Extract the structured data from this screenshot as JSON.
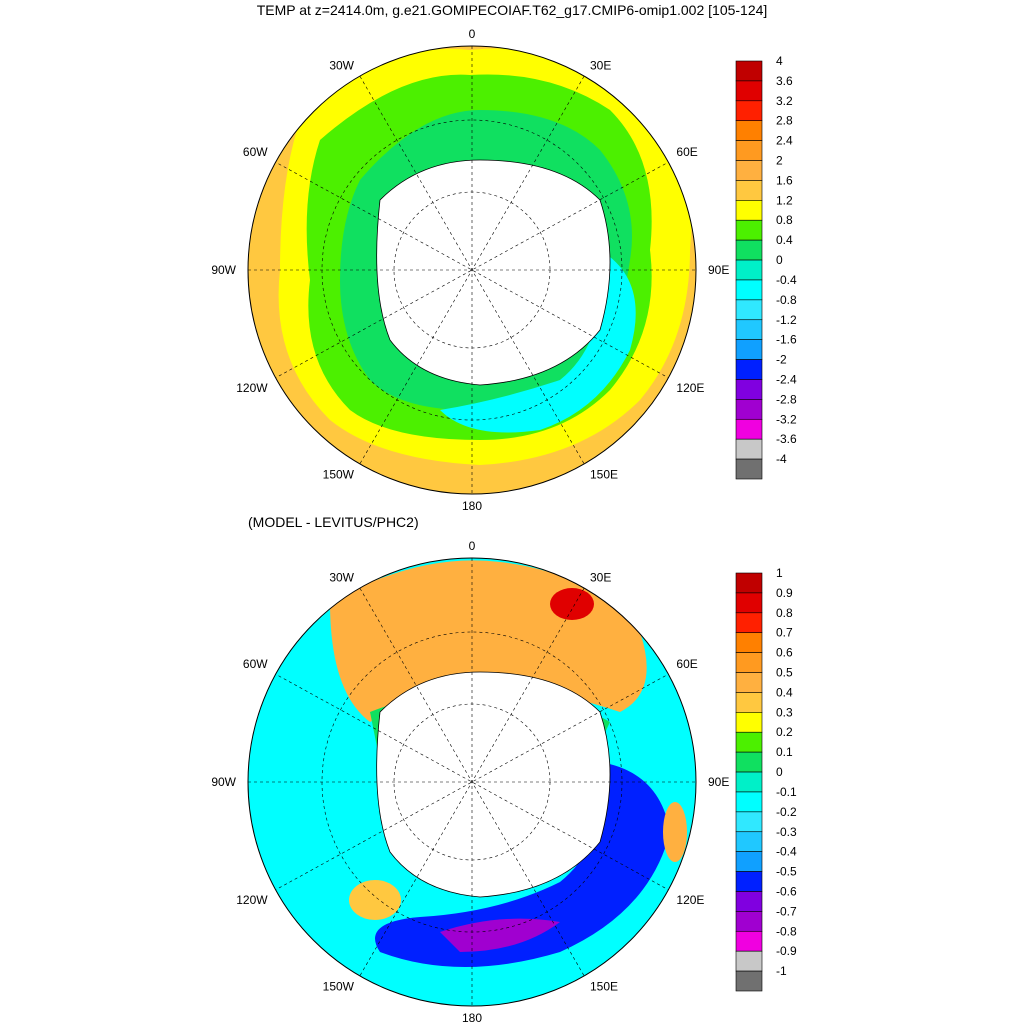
{
  "title": "TEMP at z=2414.0m, g.e21.GOMIPECOIAF.T62_g17.CMIP6-omip1.002 [105-124]",
  "subtitle": "(MODEL - LEVITUS/PHC2)",
  "chart_data": [
    {
      "type": "heatmap",
      "projection": "south-polar-stereographic",
      "title": "TEMP at z=2414.0m, g.e21.GOMIPECOIAF.T62_g17.CMIP6-omip1.002 [105-124]",
      "longitude_labels": [
        "0",
        "30E",
        "60E",
        "90E",
        "120E",
        "150E",
        "180",
        "150W",
        "120W",
        "90W",
        "60W",
        "30W"
      ],
      "colorbar": {
        "levels": [
          "4",
          "3.6",
          "3.2",
          "2.8",
          "2.4",
          "2",
          "1.6",
          "1.2",
          "0.8",
          "0.4",
          "0",
          "-0.4",
          "-0.8",
          "-1.2",
          "-1.6",
          "-2",
          "-2.4",
          "-2.8",
          "-3.2",
          "-3.6",
          "-4"
        ],
        "colors": [
          "#c00000",
          "#e00000",
          "#ff2000",
          "#ff8000",
          "#ff9a20",
          "#ffb040",
          "#ffc840",
          "#ffff00",
          "#4cf000",
          "#10e060",
          "#00f0c8",
          "#00ffff",
          "#30e8ff",
          "#20c8ff",
          "#10a0ff",
          "#0020ff",
          "#8000e0",
          "#a000d0",
          "#f000e0",
          "#c8c8c8",
          "#707070"
        ]
      },
      "range": [
        -4,
        4
      ],
      "regions_summary": [
        "outer ring 1.2 to 2.0 (orange/yellow)",
        "inner band 0.4 to 0.8 (green)",
        "near continent 0 to 0.4",
        "Ross/Indian sector -0.8 to 0"
      ]
    },
    {
      "type": "heatmap",
      "projection": "south-polar-stereographic",
      "title": "(MODEL - LEVITUS/PHC2)",
      "longitude_labels": [
        "0",
        "30E",
        "60E",
        "90E",
        "120E",
        "150E",
        "180",
        "150W",
        "120W",
        "90W",
        "60W",
        "30W"
      ],
      "colorbar": {
        "levels": [
          "1",
          "0.9",
          "0.8",
          "0.7",
          "0.6",
          "0.5",
          "0.4",
          "0.3",
          "0.2",
          "0.1",
          "0",
          "-0.1",
          "-0.2",
          "-0.3",
          "-0.4",
          "-0.5",
          "-0.6",
          "-0.7",
          "-0.8",
          "-0.9",
          "-1"
        ],
        "colors": [
          "#c00000",
          "#e00000",
          "#ff2000",
          "#ff8000",
          "#ff9a20",
          "#ffb040",
          "#ffc840",
          "#ffff00",
          "#4cf000",
          "#10e060",
          "#00f0c8",
          "#00ffff",
          "#30e8ff",
          "#20c8ff",
          "#10a0ff",
          "#0020ff",
          "#8000e0",
          "#a000d0",
          "#f000e0",
          "#c8c8c8",
          "#707070"
        ]
      },
      "range": [
        -1,
        1
      ],
      "regions_summary": [
        "Weddell/Atlantic sector +0.4 to +0.9",
        "Pacific sector -0.2 to 0",
        "Ross Sea / Pacific sector -0.9 to -0.5"
      ]
    }
  ]
}
